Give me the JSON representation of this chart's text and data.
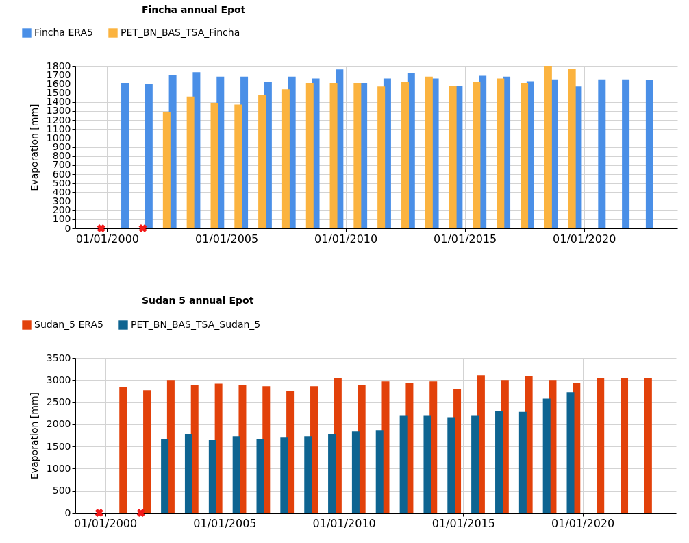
{
  "chart_data": [
    {
      "type": "bar",
      "title": "Fincha annual Epot",
      "ylabel": "Evaporation [mm]",
      "legend": "top left",
      "grid": true,
      "xlim": [
        "1998-09",
        "2023-12"
      ],
      "xticks": [
        {
          "value": "2000-01-01",
          "label": "01/01/2000"
        },
        {
          "value": "2005-01-01",
          "label": "01/01/2005"
        },
        {
          "value": "2010-01-01",
          "label": "01/01/2010"
        },
        {
          "value": "2015-01-01",
          "label": "01/01/2015"
        },
        {
          "value": "2020-01-01",
          "label": "01/01/2020"
        }
      ],
      "ylim": [
        0,
        1800
      ],
      "yticks": [
        0,
        100,
        200,
        300,
        400,
        500,
        600,
        700,
        800,
        900,
        1000,
        1100,
        1200,
        1300,
        1400,
        1500,
        1600,
        1700,
        1800
      ],
      "series": [
        {
          "name": "Fincha ERA5",
          "color": "#4a8fe7",
          "x": [
            "2000-10",
            "2001-10",
            "2002-10",
            "2003-10",
            "2004-10",
            "2005-10",
            "2006-10",
            "2007-10",
            "2008-10",
            "2009-10",
            "2010-10",
            "2011-10",
            "2012-10",
            "2013-10",
            "2014-10",
            "2015-10",
            "2016-10",
            "2017-10",
            "2018-10",
            "2019-10",
            "2020-10",
            "2021-10",
            "2022-10"
          ],
          "values": [
            1610,
            1600,
            1700,
            1730,
            1680,
            1680,
            1620,
            1680,
            1660,
            1760,
            1610,
            1660,
            1720,
            1660,
            1580,
            1690,
            1680,
            1630,
            1650,
            1570,
            1650,
            1650,
            1640
          ]
        },
        {
          "name": "PET_BN_BAS_TSA_Fincha",
          "color": "#fbb33f",
          "x": [
            "2002-07",
            "2003-07",
            "2004-07",
            "2005-07",
            "2006-07",
            "2007-07",
            "2008-07",
            "2009-07",
            "2010-07",
            "2011-07",
            "2012-07",
            "2013-07",
            "2014-07",
            "2015-07",
            "2016-07",
            "2017-07",
            "2018-07",
            "2019-07"
          ],
          "values": [
            1290,
            1460,
            1390,
            1370,
            1480,
            1540,
            1610,
            1610,
            1610,
            1570,
            1620,
            1680,
            1580,
            1620,
            1660,
            1610,
            1800,
            1770
          ]
        },
        {
          "type": "scatter",
          "marker": "cross",
          "color": "#f21a1a",
          "x": [
            "1999-10",
            "2001-07"
          ],
          "values": [
            0,
            0
          ]
        }
      ]
    },
    {
      "type": "bar",
      "title": "Sudan 5 annual Epot",
      "ylabel": "Evaporation [mm]",
      "legend": "top left",
      "grid": true,
      "xlim": [
        "1998-10",
        "2023-12"
      ],
      "xticks": [
        {
          "value": "2000-01-01",
          "label": "01/01/2000"
        },
        {
          "value": "2005-01-01",
          "label": "01/01/2005"
        },
        {
          "value": "2010-01-01",
          "label": "01/01/2010"
        },
        {
          "value": "2015-01-01",
          "label": "01/01/2015"
        },
        {
          "value": "2020-01-01",
          "label": "01/01/2020"
        }
      ],
      "ylim": [
        0,
        3500
      ],
      "yticks": [
        0,
        500,
        1000,
        1500,
        2000,
        2500,
        3000,
        3500
      ],
      "series": [
        {
          "name": "Sudan_5 ERA5",
          "color": "#e2410a",
          "x": [
            "2000-10",
            "2001-10",
            "2002-10",
            "2003-10",
            "2004-10",
            "2005-10",
            "2006-10",
            "2007-10",
            "2008-10",
            "2009-10",
            "2010-10",
            "2011-10",
            "2012-10",
            "2013-10",
            "2014-10",
            "2015-10",
            "2016-10",
            "2017-10",
            "2018-10",
            "2019-10",
            "2020-10",
            "2021-10",
            "2022-10"
          ],
          "values": [
            2850,
            2770,
            3000,
            2890,
            2920,
            2890,
            2860,
            2750,
            2860,
            3050,
            2890,
            2970,
            2940,
            2970,
            2800,
            3110,
            3000,
            3080,
            3000,
            2940,
            3050,
            3050,
            3050
          ]
        },
        {
          "name": "PET_BN_BAS_TSA_Sudan_5",
          "color": "#0e6491",
          "x": [
            "2002-07",
            "2003-07",
            "2004-07",
            "2005-07",
            "2006-07",
            "2007-07",
            "2008-07",
            "2009-07",
            "2010-07",
            "2011-07",
            "2012-07",
            "2013-07",
            "2014-07",
            "2015-07",
            "2016-07",
            "2017-07",
            "2018-07",
            "2019-07"
          ],
          "values": [
            1670,
            1780,
            1640,
            1730,
            1670,
            1700,
            1730,
            1780,
            1840,
            1870,
            2190,
            2190,
            2160,
            2190,
            2300,
            2280,
            2580,
            2720
          ]
        },
        {
          "type": "scatter",
          "marker": "cross",
          "color": "#f21a1a",
          "x": [
            "1999-10",
            "2001-07"
          ],
          "values": [
            0,
            0
          ]
        }
      ]
    }
  ]
}
